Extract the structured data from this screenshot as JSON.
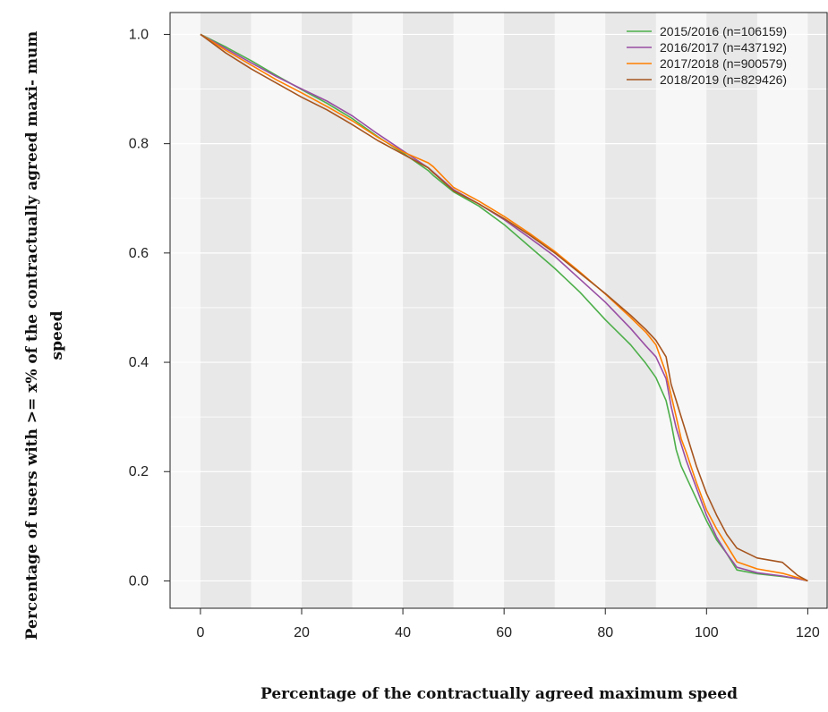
{
  "chart_data": {
    "type": "line",
    "xlabel": "Percentage of the contractually agreed maximum speed",
    "ylabel": "Percentage of users with >= x% of the contractually agreed maxi- mum speed",
    "xlim": [
      -6,
      124
    ],
    "ylim": [
      -0.05,
      1.04
    ],
    "xticks": [
      "0",
      "20",
      "40",
      "60",
      "80",
      "100",
      "120"
    ],
    "yticks": [
      "0.0",
      "0.2",
      "0.4",
      "0.6",
      "0.8",
      "1.0"
    ],
    "legend_position": "top-right",
    "background_bands": "alternating grey every 10 units",
    "series": [
      {
        "name": "2015/2016 (n=106159)",
        "color": "#4daf4a",
        "x": [
          0,
          5,
          10,
          15,
          20,
          25,
          30,
          35,
          40,
          45,
          46,
          50,
          55,
          60,
          65,
          70,
          75,
          80,
          85,
          88,
          90,
          92,
          93,
          94,
          95,
          96,
          98,
          100,
          102,
          104,
          106,
          110,
          115,
          118,
          120
        ],
        "y": [
          1.0,
          0.977,
          0.952,
          0.925,
          0.899,
          0.874,
          0.846,
          0.813,
          0.783,
          0.751,
          0.742,
          0.712,
          0.686,
          0.652,
          0.612,
          0.572,
          0.528,
          0.478,
          0.432,
          0.398,
          0.372,
          0.33,
          0.29,
          0.24,
          0.21,
          0.19,
          0.15,
          0.11,
          0.075,
          0.05,
          0.02,
          0.013,
          0.008,
          0.004,
          0.0
        ]
      },
      {
        "name": "2016/2017 (n=437192)",
        "color": "#984ea3",
        "x": [
          0,
          5,
          10,
          15,
          20,
          25,
          30,
          35,
          40,
          45,
          46,
          50,
          55,
          60,
          65,
          70,
          75,
          80,
          85,
          88,
          90,
          92,
          93,
          94,
          95,
          96,
          98,
          100,
          102,
          104,
          106,
          110,
          115,
          118,
          120
        ],
        "y": [
          1.0,
          0.974,
          0.948,
          0.923,
          0.9,
          0.878,
          0.851,
          0.818,
          0.787,
          0.756,
          0.748,
          0.716,
          0.69,
          0.661,
          0.628,
          0.594,
          0.552,
          0.51,
          0.462,
          0.43,
          0.41,
          0.37,
          0.32,
          0.28,
          0.25,
          0.22,
          0.17,
          0.12,
          0.08,
          0.05,
          0.025,
          0.015,
          0.009,
          0.004,
          0.0
        ]
      },
      {
        "name": "2017/2018 (n=900579)",
        "color": "#ff7f00",
        "x": [
          0,
          5,
          10,
          15,
          20,
          25,
          30,
          35,
          40,
          45,
          46,
          50,
          55,
          60,
          65,
          70,
          75,
          80,
          85,
          88,
          90,
          92,
          93,
          94,
          95,
          96,
          98,
          100,
          102,
          104,
          106,
          110,
          115,
          118,
          120
        ],
        "y": [
          1.0,
          0.971,
          0.944,
          0.917,
          0.893,
          0.868,
          0.842,
          0.812,
          0.785,
          0.765,
          0.758,
          0.72,
          0.695,
          0.667,
          0.636,
          0.603,
          0.565,
          0.525,
          0.482,
          0.455,
          0.432,
          0.38,
          0.34,
          0.3,
          0.26,
          0.235,
          0.18,
          0.13,
          0.095,
          0.065,
          0.035,
          0.022,
          0.014,
          0.006,
          0.0
        ]
      },
      {
        "name": "2018/2019 (n=829426)",
        "color": "#a6551f",
        "x": [
          0,
          5,
          10,
          15,
          20,
          25,
          30,
          35,
          40,
          45,
          46,
          50,
          55,
          60,
          65,
          70,
          75,
          80,
          85,
          88,
          90,
          92,
          93,
          94,
          95,
          96,
          98,
          100,
          102,
          104,
          106,
          110,
          115,
          116,
          118,
          120
        ],
        "y": [
          1.0,
          0.966,
          0.937,
          0.911,
          0.885,
          0.862,
          0.835,
          0.806,
          0.781,
          0.756,
          0.747,
          0.714,
          0.69,
          0.663,
          0.633,
          0.6,
          0.563,
          0.526,
          0.486,
          0.46,
          0.44,
          0.41,
          0.36,
          0.33,
          0.3,
          0.27,
          0.21,
          0.16,
          0.12,
          0.085,
          0.06,
          0.042,
          0.034,
          0.026,
          0.01,
          0.0
        ]
      }
    ]
  }
}
